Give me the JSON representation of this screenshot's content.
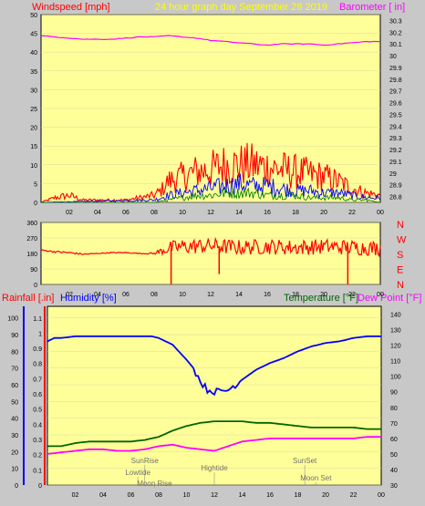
{
  "chart_data": [
    {
      "type": "line",
      "panel": "wind-baro",
      "title": "24 hour graph day   September 28 2019",
      "ylabel_left": "Windspeed [mph]",
      "ylabel_right": "Barometer [ in]",
      "x_ticks": [
        "02",
        "04",
        "06",
        "08",
        "10",
        "12",
        "14",
        "16",
        "18",
        "20",
        "22",
        "00"
      ],
      "x_range_hours": [
        0,
        24
      ],
      "y_left_ticks": [
        "0",
        "5",
        "10",
        "15",
        "20",
        "25",
        "30",
        "35",
        "40",
        "45",
        "50"
      ],
      "y_left_range": [
        0,
        50
      ],
      "y_right_ticks": [
        "28.8",
        "28.9",
        "29",
        "29.1",
        "29.2",
        "29.3",
        "29.4",
        "29.5",
        "29.6",
        "29.7",
        "29.8",
        "29.9",
        "30",
        "30.1",
        "30.2",
        "30.3"
      ],
      "y_right_range": [
        28.75,
        30.35
      ],
      "series": [
        {
          "name": "Wind gust",
          "color": "#ff0000",
          "axis": "left",
          "x": [
            0,
            1,
            2,
            3,
            4,
            5,
            6,
            7,
            8,
            8.5,
            9,
            10,
            11,
            12,
            13,
            14,
            15,
            16,
            17,
            18,
            19,
            20,
            21,
            22,
            23,
            24
          ],
          "max": [
            0,
            2,
            3,
            1,
            1,
            1,
            1,
            2,
            3,
            5,
            9,
            11,
            13,
            14,
            16,
            16,
            16,
            15,
            14,
            13,
            12,
            11,
            9,
            6,
            4,
            3
          ]
        },
        {
          "name": "Wind average",
          "color": "#0000ff",
          "axis": "left",
          "x": [
            0,
            8,
            9,
            10,
            11,
            12,
            13,
            14,
            15,
            16,
            17,
            18,
            19,
            20,
            21,
            22,
            23,
            24
          ],
          "max": [
            0,
            1,
            3,
            4,
            5,
            6,
            7,
            8,
            7,
            7,
            6,
            5,
            5,
            4,
            4,
            3,
            2,
            2
          ]
        },
        {
          "name": "Wind lull",
          "color": "#008000",
          "axis": "left",
          "x": [
            0,
            8,
            9,
            10,
            11,
            12,
            13,
            14,
            15,
            16,
            17,
            18,
            19,
            20,
            21,
            22,
            23,
            24
          ],
          "max": [
            0,
            0,
            1,
            2,
            3,
            3,
            4,
            4,
            4,
            3,
            3,
            3,
            2,
            2,
            2,
            1,
            1,
            0
          ]
        },
        {
          "name": "Barometer",
          "color": "#ff00ff",
          "axis": "right",
          "x": [
            0,
            1,
            2,
            3,
            4,
            5,
            6,
            7,
            8,
            9,
            10,
            11,
            12,
            13,
            14,
            15,
            16,
            17,
            18,
            19,
            20,
            21,
            22,
            23,
            24
          ],
          "y": [
            30.17,
            30.16,
            30.15,
            30.14,
            30.14,
            30.14,
            30.15,
            30.16,
            30.16,
            30.17,
            30.16,
            30.15,
            30.13,
            30.12,
            30.11,
            30.1,
            30.09,
            30.1,
            30.1,
            30.1,
            30.09,
            30.1,
            30.11,
            30.12,
            30.12
          ]
        }
      ]
    },
    {
      "type": "line",
      "panel": "wind-direction",
      "y_left_ticks": [
        "360",
        "270",
        "180",
        "90",
        "0"
      ],
      "y_range": [
        0,
        360
      ],
      "compass_labels": [
        "N",
        "W",
        "S",
        "E",
        "N"
      ],
      "x_ticks": [
        "02",
        "04",
        "06",
        "08",
        "10",
        "12",
        "14",
        "16",
        "18",
        "20",
        "22",
        "00"
      ],
      "series": [
        {
          "name": "Wind direction",
          "color": "#ff0000",
          "x": [
            0,
            1,
            2,
            3,
            4,
            5,
            6,
            7,
            8,
            9,
            10,
            12,
            14,
            16,
            18,
            20,
            22,
            24
          ],
          "y": [
            200,
            190,
            185,
            175,
            180,
            185,
            185,
            180,
            180,
            210,
            220,
            225,
            215,
            220,
            215,
            220,
            215,
            210
          ],
          "spread": [
            5,
            10,
            10,
            10,
            5,
            5,
            5,
            5,
            10,
            80,
            90,
            90,
            90,
            90,
            90,
            90,
            90,
            90
          ],
          "spikes": [
            {
              "x": 9.2,
              "y": 0
            },
            {
              "x": 12.6,
              "y": 60
            },
            {
              "x": 21.7,
              "y": 0
            }
          ]
        }
      ]
    },
    {
      "type": "line",
      "panel": "temp-hum",
      "ylabel_left_1": "Rainfall [.in]",
      "ylabel_left_2": "Humidity [%]",
      "ylabel_right_1": "Temperature [°F]",
      "ylabel_right_2": "Dew Point [°F]",
      "x_ticks": [
        "02",
        "04",
        "06",
        "08",
        "10",
        "12",
        "14",
        "16",
        "18",
        "20",
        "22",
        "00"
      ],
      "y_humidity_ticks": [
        "0",
        "10",
        "20",
        "30",
        "40",
        "50",
        "60",
        "70",
        "80",
        "90",
        "100"
      ],
      "y_rain_ticks": [
        "0",
        "0.1",
        "0.2",
        "0.3",
        "0.4",
        "0.5",
        "0.6",
        "0.7",
        "0.8",
        "0.9",
        "1",
        "1.1"
      ],
      "y_temp_ticks": [
        "30",
        "40",
        "50",
        "60",
        "70",
        "80",
        "90",
        "100",
        "110",
        "120",
        "130",
        "140"
      ],
      "y_humidity_range": [
        0,
        100
      ],
      "y_temp_range": [
        30,
        145
      ],
      "annotations": [
        {
          "label": "SunRise",
          "x": 7.0
        },
        {
          "label": "Lowtide",
          "x": 6.5
        },
        {
          "label": "Moon Rise",
          "x": 7.7
        },
        {
          "label": "Hightide",
          "x": 12.0
        },
        {
          "label": "SunSet",
          "x": 18.5
        },
        {
          "label": "Moon Set",
          "x": 19.3
        }
      ],
      "series": [
        {
          "name": "Humidity",
          "color": "#0000ff",
          "axis": "humidity",
          "x": [
            0,
            0.5,
            1,
            2,
            3,
            4,
            5,
            6,
            7,
            7.5,
            8,
            9,
            10,
            10.5,
            11,
            11.5,
            12,
            12.5,
            13,
            13.5,
            14,
            15,
            16,
            17,
            18,
            19,
            20,
            21,
            22,
            23,
            24
          ],
          "y": [
            86,
            88,
            88,
            89,
            89,
            89,
            89,
            89,
            89,
            89,
            88,
            84,
            75,
            70,
            62,
            57,
            56,
            56,
            57,
            60,
            63,
            69,
            73,
            76,
            80,
            83,
            85,
            86,
            88,
            89,
            89
          ]
        },
        {
          "name": "Temperature",
          "color": "#006400",
          "axis": "temp",
          "x": [
            0,
            1,
            2,
            3,
            4,
            5,
            6,
            7,
            8,
            9,
            10,
            11,
            12,
            13,
            14,
            15,
            16,
            17,
            18,
            19,
            20,
            21,
            22,
            23,
            24
          ],
          "y": [
            55,
            55,
            57,
            58,
            58,
            58,
            58,
            59,
            61,
            65,
            68,
            70,
            71,
            71,
            71,
            70,
            70,
            69,
            68,
            67,
            67,
            67,
            67,
            66,
            66
          ]
        },
        {
          "name": "Dew Point",
          "color": "#ff00ff",
          "axis": "temp",
          "x": [
            0,
            1,
            2,
            3,
            4,
            5,
            6,
            7,
            8,
            9,
            10,
            11,
            12,
            13,
            14,
            15,
            16,
            17,
            18,
            19,
            20,
            21,
            22,
            23,
            24
          ],
          "y": [
            50,
            51,
            52,
            53,
            53,
            52,
            52,
            53,
            55,
            56,
            54,
            53,
            52,
            55,
            58,
            59,
            60,
            60,
            60,
            60,
            60,
            60,
            60,
            61,
            61
          ]
        }
      ]
    }
  ]
}
